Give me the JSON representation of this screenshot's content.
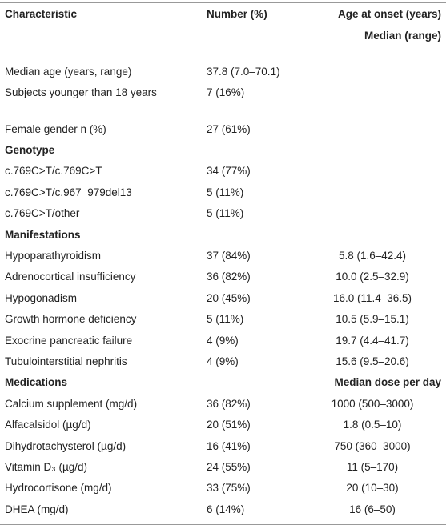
{
  "table": {
    "header": [
      "Characteristic",
      "Number (%)",
      [
        "Age at onset (years)",
        "Median (range)"
      ]
    ],
    "rows": [
      [
        "Median age (years, range)",
        "37.8 (7.0–70.1)"
      ],
      [
        "Subjects younger than 18 years",
        "7 (16%)"
      ],
      [
        "Female gender n (%)",
        "27 (61%)"
      ],
      {
        "heading": "Genotype"
      },
      [
        "c.769C>T/c.769C>T",
        "34 (77%)"
      ],
      [
        "c.769C>T/c.967_979del13",
        "5 (11%)"
      ],
      [
        "c.769C>T/other",
        "5 (11%)"
      ],
      {
        "heading": "Manifestations"
      },
      [
        "Hypoparathyroidism",
        "37 (84%)",
        "5.8 (1.6–42.4)"
      ],
      [
        "Adrenocortical insufficiency",
        "36 (82%)",
        "10.0 (2.5–32.9)"
      ],
      [
        "Hypogonadism",
        "20 (45%)",
        "16.0 (11.4–36.5)"
      ],
      [
        "Growth hormone deficiency",
        "5 (11%)",
        "10.5 (5.9–15.1)"
      ],
      [
        "Exocrine pancreatic failure",
        "4 (9%)",
        "19.7 (4.4–41.7)"
      ],
      [
        "Tubulointerstitial nephritis",
        "4 (9%)",
        "15.6 (9.5–20.6)"
      ],
      {
        "heading": "Medications",
        "subheading": "Median dose per day"
      },
      [
        "Calcium supplement (mg/d)",
        "36 (82%)",
        "1000 (500–3000)"
      ],
      [
        "Alfacalsidol (µg/d)",
        "20 (51%)",
        "1.8 (0.5–10)"
      ],
      [
        "Dihydrotachysterol (µg/d)",
        "16 (41%)",
        "750 (360–3000)"
      ],
      [
        "Vitamin D₃ (µg/d)",
        "24 (55%)",
        "11 (5–170)"
      ],
      [
        "Hydrocortisone (mg/d)",
        "33 (75%)",
        "20 (10–30)"
      ],
      [
        "DHEA (mg/d)",
        "6 (14%)",
        "16 (6–50)"
      ]
    ]
  }
}
